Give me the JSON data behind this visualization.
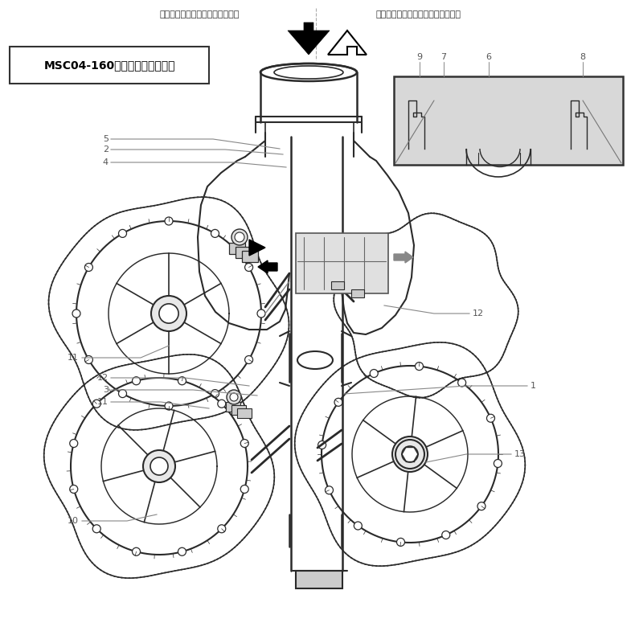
{
  "bg_color": "#ffffff",
  "line_color": "#2a2a2a",
  "number_color": "#555555",
  "label_box_text": "MSC04-160顔示擁有套燊式連接",
  "top_label_left": "用於蒸汽輸送工作之時的出水方向",
  "top_label_right": "用於冷凝水收集工作之時的出水方向",
  "figsize": [
    7.9,
    7.75
  ],
  "dpi": 100
}
